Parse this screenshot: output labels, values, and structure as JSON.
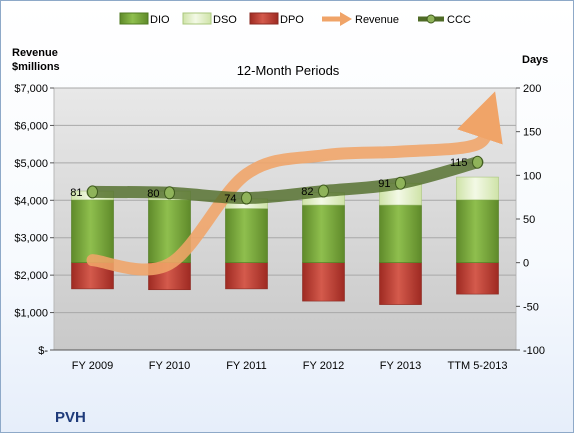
{
  "company": "PVH",
  "chart_data": {
    "type": "bar",
    "title": "12-Month Periods",
    "y_left_label": [
      "Revenue",
      "$millions"
    ],
    "y_right_label": "Days",
    "categories": [
      "FY 2009",
      "FY 2010",
      "FY 2011",
      "FY 2012",
      "FY 2013",
      "TTM 5-2013"
    ],
    "y_left_ticks": [
      "$-",
      "$1,000",
      "$2,000",
      "$3,000",
      "$4,000",
      "$5,000",
      "$6,000",
      "$7,000"
    ],
    "y_left_range": [
      0,
      7000
    ],
    "y_right_ticks": [
      "-100",
      "-50",
      "0",
      "50",
      "100",
      "150",
      "200"
    ],
    "y_right_range": [
      -100,
      200
    ],
    "legend_position": "top",
    "series": [
      {
        "name": "DIO",
        "kind": "bar-stack",
        "color": "#76a33a",
        "values": [
          72,
          72,
          62,
          66,
          66,
          72
        ]
      },
      {
        "name": "DSO",
        "kind": "bar-stack",
        "color": "#dfeec3",
        "values": [
          10,
          10,
          11,
          14,
          25,
          26
        ]
      },
      {
        "name": "DPO",
        "kind": "bar-negative",
        "color": "#c0392b",
        "values": [
          -30,
          -31,
          -30,
          -44,
          -48,
          -36
        ]
      },
      {
        "name": "Revenue",
        "kind": "line",
        "axis": "left",
        "color": "#f0a468",
        "values": [
          2400,
          2300,
          4700,
          5200,
          5300,
          5500
        ]
      },
      {
        "name": "CCC",
        "kind": "line",
        "axis": "right",
        "color": "#4f6b27",
        "values": [
          81,
          80,
          74,
          82,
          91,
          115
        ]
      }
    ],
    "ccc_labels": [
      "81",
      "80",
      "74",
      "82",
      "91",
      "115"
    ]
  }
}
